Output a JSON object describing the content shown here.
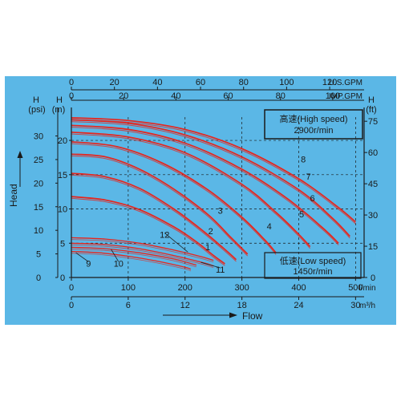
{
  "colors": {
    "background": "#5bb7e6",
    "curve": "#e8241b",
    "grid": "#1a1a1a",
    "text": "#1a1a1a"
  },
  "chart_data": {
    "type": "line",
    "axes": {
      "top1": {
        "ticks": [
          "0",
          "20",
          "40",
          "60",
          "80",
          "100",
          "120"
        ],
        "unit": "U.S.GPM",
        "range": [
          0,
          136
        ]
      },
      "top2": {
        "ticks": [
          "0",
          "20",
          "40",
          "60",
          "80",
          "100"
        ],
        "unit": "IMP.GPM",
        "range": [
          0,
          112
        ]
      },
      "left_psi": {
        "unit_line1": "H",
        "unit_line2": "(psi)",
        "ticks": [
          "0",
          "5",
          "10",
          "15",
          "20",
          "25",
          "30"
        ],
        "range": [
          0,
          34
        ]
      },
      "left_m": {
        "unit_line1": "H",
        "unit_line2": "(m)",
        "ticks": [
          "0",
          "5",
          "10",
          "15",
          "20"
        ],
        "range": [
          0,
          23.4
        ]
      },
      "right_ft": {
        "unit_line1": "H",
        "unit_line2": "(ft)",
        "ticks": [
          "0",
          "15",
          "30",
          "45",
          "60",
          "75"
        ],
        "range": [
          0,
          77
        ]
      },
      "bottom_lmin": {
        "ticks": [
          "0",
          "100",
          "200",
          "300",
          "400",
          "500"
        ],
        "unit": "l/min",
        "range": [
          0,
          515
        ]
      },
      "bottom_m3h": {
        "ticks": [
          "0",
          "6",
          "12",
          "18",
          "24",
          "30"
        ],
        "unit": "m³/h",
        "range": [
          0,
          30.9
        ]
      }
    },
    "ylabel": "Head",
    "xlabel": "Flow",
    "high_speed_label": "高速(High speed)",
    "high_speed_rpm": "2900r/min",
    "low_speed_label": "低速(Low speed)",
    "low_speed_rpm": "1450r/min",
    "series": [
      {
        "name": "1",
        "speed": "high",
        "x_lmin": [
          0,
          60,
          120,
          180,
          220,
          250,
          270
        ],
        "y_m": [
          11.8,
          11.3,
          9.9,
          7.4,
          5.2,
          3.2,
          2.0
        ]
      },
      {
        "name": "2",
        "speed": "high",
        "x_lmin": [
          0,
          60,
          120,
          180,
          230,
          270,
          290
        ],
        "y_m": [
          15.2,
          14.7,
          13.0,
          10.0,
          6.9,
          4.1,
          2.6
        ]
      },
      {
        "name": "3",
        "speed": "high",
        "x_lmin": [
          0,
          60,
          120,
          180,
          240,
          280,
          310
        ],
        "y_m": [
          18.0,
          17.6,
          15.8,
          12.9,
          9.2,
          5.9,
          3.4
        ]
      },
      {
        "name": "4",
        "speed": "high",
        "x_lmin": [
          0,
          80,
          160,
          240,
          300,
          340,
          360
        ],
        "y_m": [
          19.8,
          19.1,
          16.7,
          12.8,
          8.8,
          5.5,
          3.6
        ]
      },
      {
        "name": "5",
        "speed": "high",
        "x_lmin": [
          0,
          100,
          200,
          300,
          360,
          400,
          420
        ],
        "y_m": [
          21.2,
          20.5,
          18.2,
          13.6,
          9.5,
          6.3,
          4.5
        ]
      },
      {
        "name": "6",
        "speed": "high",
        "x_lmin": [
          0,
          100,
          200,
          300,
          380,
          440,
          470
        ],
        "y_m": [
          22.2,
          21.6,
          19.6,
          15.8,
          11.5,
          7.4,
          5.0
        ]
      },
      {
        "name": "7",
        "speed": "high",
        "x_lmin": [
          0,
          100,
          200,
          300,
          400,
          460,
          490
        ],
        "y_m": [
          23.0,
          22.5,
          20.8,
          17.6,
          12.8,
          8.6,
          6.0
        ]
      },
      {
        "name": "8",
        "speed": "high",
        "x_lmin": [
          0,
          100,
          200,
          300,
          400,
          470,
          500
        ],
        "y_m": [
          23.3,
          22.9,
          21.6,
          18.8,
          14.4,
          10.2,
          8.1
        ]
      },
      {
        "name": "9",
        "speed": "low",
        "x_lmin": [
          0,
          50,
          100,
          150,
          200,
          210
        ],
        "y_m": [
          3.8,
          3.6,
          3.1,
          2.4,
          1.5,
          1.2
        ]
      },
      {
        "name": "10",
        "speed": "low",
        "x_lmin": [
          0,
          60,
          120,
          180,
          220
        ],
        "y_m": [
          4.4,
          4.2,
          3.6,
          2.7,
          1.8
        ]
      },
      {
        "name": "11",
        "speed": "low",
        "x_lmin": [
          0,
          60,
          120,
          180,
          230,
          250
        ],
        "y_m": [
          5.0,
          4.8,
          4.2,
          3.2,
          2.2,
          1.7
        ]
      },
      {
        "name": "12",
        "speed": "low",
        "x_lmin": [
          0,
          60,
          120,
          180,
          230,
          250
        ],
        "y_m": [
          5.8,
          5.6,
          5.0,
          4.0,
          3.0,
          2.5
        ]
      }
    ],
    "curve_labels": [
      {
        "text": "1",
        "x": 240,
        "y": 4.0
      },
      {
        "text": "2",
        "x": 245,
        "y": 6.3
      },
      {
        "text": "3",
        "x": 262,
        "y": 9.3
      },
      {
        "text": "4",
        "x": 348,
        "y": 7.0
      },
      {
        "text": "5",
        "x": 405,
        "y": 8.8
      },
      {
        "text": "6",
        "x": 424,
        "y": 11.1
      },
      {
        "text": "7",
        "x": 417,
        "y": 14.3
      },
      {
        "text": "8",
        "x": 408,
        "y": 16.8
      },
      {
        "text": "9",
        "x": 30,
        "y": 1.6
      },
      {
        "text": "10",
        "x": 83,
        "y": 1.6
      },
      {
        "text": "11",
        "x": 262,
        "y": 0.7
      },
      {
        "text": "12",
        "x": 164,
        "y": 5.8
      }
    ]
  }
}
